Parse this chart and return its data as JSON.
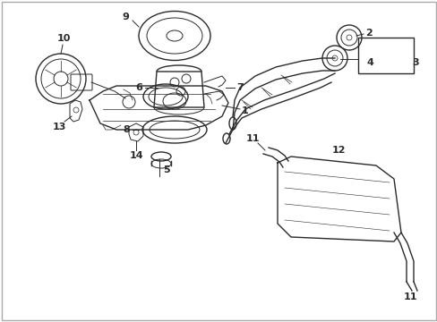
{
  "background_color": "#ffffff",
  "border_color": "#cccccc",
  "line_color": "#2a2a2a",
  "fig_width": 4.89,
  "fig_height": 3.6,
  "dpi": 100
}
